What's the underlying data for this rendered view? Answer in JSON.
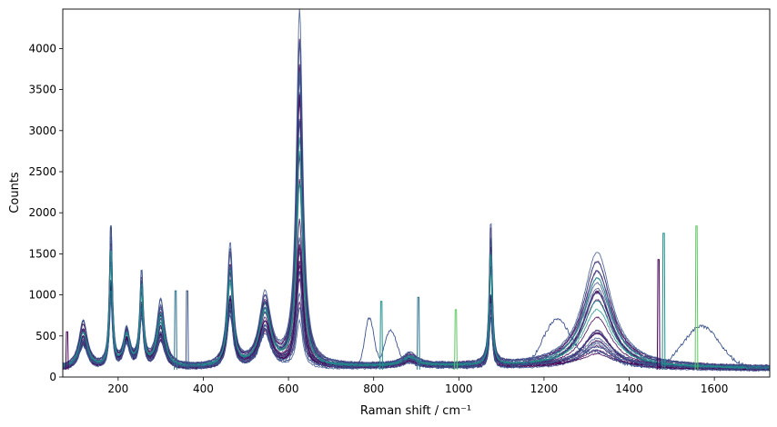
{
  "chart_data": {
    "type": "line",
    "title": "",
    "xlabel": "Raman shift / cm⁻¹",
    "ylabel": "Counts",
    "xlim": [
      70,
      1730
    ],
    "ylim": [
      0,
      4480
    ],
    "xticks": [
      200,
      400,
      600,
      800,
      1000,
      1200,
      1400,
      1600
    ],
    "yticks": [
      0,
      500,
      1000,
      1500,
      2000,
      2500,
      3000,
      3500,
      4000
    ],
    "grid": false,
    "legend": "none",
    "colormap": [
      "#440154",
      "#3b528b",
      "#21918c",
      "#5ec962",
      "#fde725"
    ],
    "series_count": 30,
    "peaks": [
      {
        "center": 118,
        "height_range": [
          300,
          580
        ],
        "width": 12
      },
      {
        "center": 183,
        "height_range": [
          900,
          1800
        ],
        "width": 4
      },
      {
        "center": 220,
        "height_range": [
          300,
          450
        ],
        "width": 9
      },
      {
        "center": 255,
        "height_range": [
          650,
          1190
        ],
        "width": 5
      },
      {
        "center": 300,
        "height_range": [
          350,
          810
        ],
        "width": 11
      },
      {
        "center": 463,
        "height_range": [
          700,
          1480
        ],
        "width": 8
      },
      {
        "center": 545,
        "height_range": [
          450,
          890
        ],
        "width": 16
      },
      {
        "center": 626,
        "height_range": [
          800,
          4480
        ],
        "width": 9
      },
      {
        "center": 885,
        "height_range": [
          70,
          140
        ],
        "width": 20
      },
      {
        "center": 1075,
        "height_range": [
          700,
          1820
        ],
        "width": 4
      },
      {
        "center": 1325,
        "height_range": [
          220,
          1510
        ],
        "width": 40
      }
    ],
    "baseline_range": [
      60,
      120
    ],
    "spikes": [
      {
        "x": 80,
        "y": 550,
        "color": "#440154"
      },
      {
        "x": 335,
        "y": 1050,
        "color": "#2c728e"
      },
      {
        "x": 362,
        "y": 1050,
        "color": "#3b528b"
      },
      {
        "x": 818,
        "y": 920,
        "color": "#21918c"
      },
      {
        "x": 905,
        "y": 970,
        "color": "#2c728e"
      },
      {
        "x": 993,
        "y": 820,
        "color": "#5ec962"
      },
      {
        "x": 1469,
        "y": 1430,
        "color": "#440154"
      },
      {
        "x": 1481,
        "y": 1750,
        "color": "#21918c"
      },
      {
        "x": 1558,
        "y": 1840,
        "color": "#5ec962"
      }
    ],
    "outlier_series": {
      "color": "#3b528b",
      "shoulders": [
        {
          "center": 790,
          "height": 600,
          "width": 15
        },
        {
          "center": 840,
          "height": 450,
          "width": 20
        },
        {
          "center": 1230,
          "height": 560,
          "width": 45
        },
        {
          "center": 1570,
          "height": 500,
          "width": 60
        }
      ]
    }
  }
}
